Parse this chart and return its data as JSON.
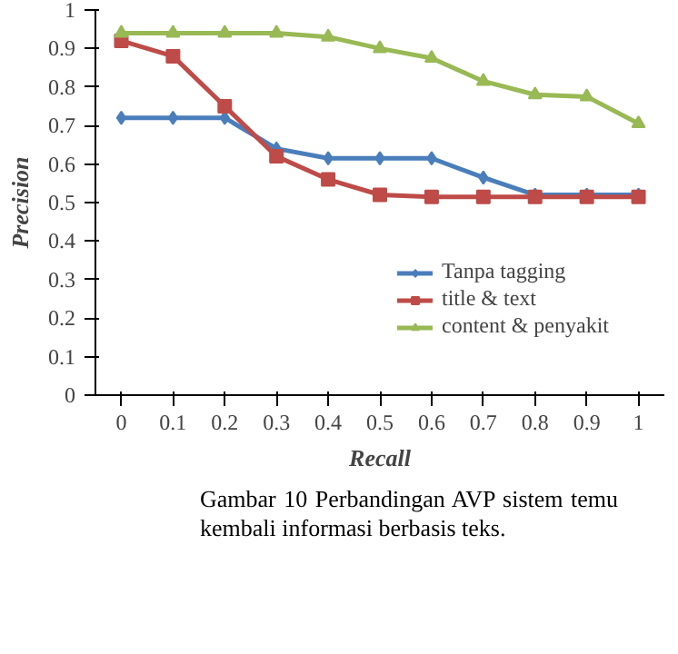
{
  "chart_data": {
    "type": "line",
    "xlabel": "Recall",
    "ylabel": "Precision",
    "categories": [
      "0",
      "0.1",
      "0.2",
      "0.3",
      "0.4",
      "0.5",
      "0.6",
      "0.7",
      "0.8",
      "0.9",
      "1"
    ],
    "series": [
      {
        "name": "Tanpa tagging",
        "color": "#4a7ebb",
        "marker": "diamond",
        "values": [
          0.72,
          0.72,
          0.72,
          0.64,
          0.615,
          0.615,
          0.615,
          0.565,
          0.52,
          0.52,
          0.52
        ]
      },
      {
        "name": "title & text",
        "color": "#be4b48",
        "marker": "square",
        "values": [
          0.92,
          0.88,
          0.75,
          0.62,
          0.56,
          0.52,
          0.515,
          0.515,
          0.515,
          0.515,
          0.515
        ]
      },
      {
        "name": "content & penyakit",
        "color": "#98b954",
        "marker": "triangle",
        "values": [
          0.94,
          0.94,
          0.94,
          0.94,
          0.93,
          0.9,
          0.875,
          0.815,
          0.78,
          0.775,
          0.705
        ]
      }
    ],
    "ylim": [
      0,
      1
    ],
    "yticks": [
      0,
      0.1,
      0.2,
      0.3,
      0.4,
      0.5,
      0.6,
      0.7,
      0.8,
      0.9,
      1
    ],
    "grid": false,
    "legend": "bottom right",
    "annotations": [
      "Gambar 10  Perbandingan AVP sistem temu kembali informasi berbasis teks."
    ]
  }
}
